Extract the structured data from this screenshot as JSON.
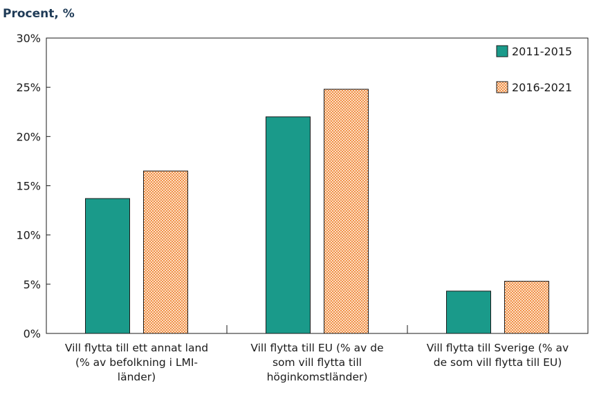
{
  "chart_data": {
    "type": "bar",
    "title": "Procent, %",
    "categories": [
      [
        "Vill flytta till ett annat land",
        "(% av befolkning i LMI-",
        "länder)"
      ],
      [
        "Vill flytta till EU (% av de",
        "som vill flytta till",
        "höginkomstländer)"
      ],
      [
        "Vill flytta till Sverige (% av",
        "de som vill flytta till EU)"
      ]
    ],
    "series": [
      {
        "name": "2011-2015",
        "values": [
          13.7,
          22.0,
          4.3
        ],
        "color": "#1a9a8a",
        "pattern": "solid"
      },
      {
        "name": "2016-2021",
        "values": [
          16.5,
          24.8,
          5.3
        ],
        "color": "#f6a96a",
        "pattern": "dotted"
      }
    ],
    "ylim": [
      0,
      30
    ],
    "yticks": [
      "0%",
      "5%",
      "10%",
      "15%",
      "20%",
      "25%",
      "30%"
    ],
    "ytick_values": [
      0,
      5,
      10,
      15,
      20,
      25,
      30
    ],
    "legend_placement": "top-right",
    "grid": false
  }
}
